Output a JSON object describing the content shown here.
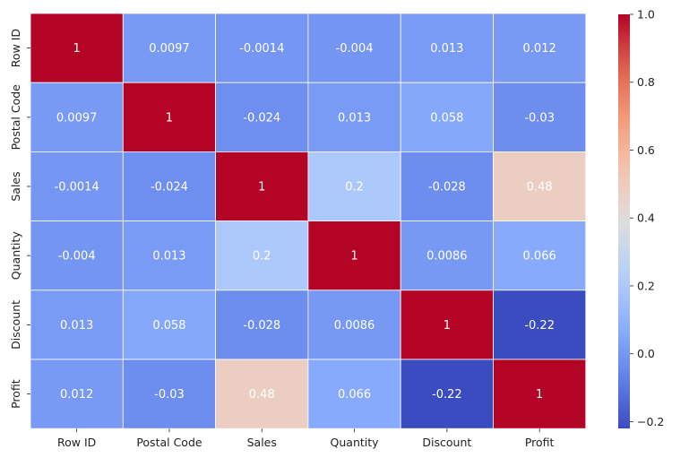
{
  "chart_data": {
    "type": "heatmap",
    "title": "",
    "xlabel": "",
    "ylabel": "",
    "x_categories": [
      "Row ID",
      "Postal Code",
      "Sales",
      "Quantity",
      "Discount",
      "Profit"
    ],
    "y_categories": [
      "Row ID",
      "Postal Code",
      "Sales",
      "Quantity",
      "Discount",
      "Profit"
    ],
    "values": [
      [
        1,
        0.0097,
        -0.0014,
        -0.004,
        0.013,
        0.012
      ],
      [
        0.0097,
        1,
        -0.024,
        0.013,
        0.058,
        -0.03
      ],
      [
        -0.0014,
        -0.024,
        1,
        0.2,
        -0.028,
        0.48
      ],
      [
        -0.004,
        0.013,
        0.2,
        1,
        0.0086,
        0.066
      ],
      [
        0.013,
        0.058,
        -0.028,
        0.0086,
        1,
        -0.22
      ],
      [
        0.012,
        -0.03,
        0.48,
        0.066,
        -0.22,
        1
      ]
    ],
    "annotations": [
      [
        "1",
        "0.0097",
        "-0.0014",
        "-0.004",
        "0.013",
        "0.012"
      ],
      [
        "0.0097",
        "1",
        "-0.024",
        "0.013",
        "0.058",
        "-0.03"
      ],
      [
        "-0.0014",
        "-0.024",
        "1",
        "0.2",
        "-0.028",
        "0.48"
      ],
      [
        "-0.004",
        "0.013",
        "0.2",
        "1",
        "0.0086",
        "0.066"
      ],
      [
        "0.013",
        "0.058",
        "-0.028",
        "0.0086",
        "1",
        "-0.22"
      ],
      [
        "0.012",
        "-0.03",
        "0.48",
        "0.066",
        "-0.22",
        "1"
      ]
    ],
    "colormap": "coolwarm",
    "vmin": -0.22,
    "vmax": 1.0,
    "colorbar_ticks": [
      1.0,
      0.8,
      0.6,
      0.4,
      0.2,
      0.0,
      -0.2
    ],
    "colorbar_tick_labels": [
      "1.0",
      "0.8",
      "0.6",
      "0.4",
      "0.2",
      "0.0",
      "−0.2"
    ],
    "cell_border_color": "#ffffff",
    "text_color": "#ffffff"
  }
}
